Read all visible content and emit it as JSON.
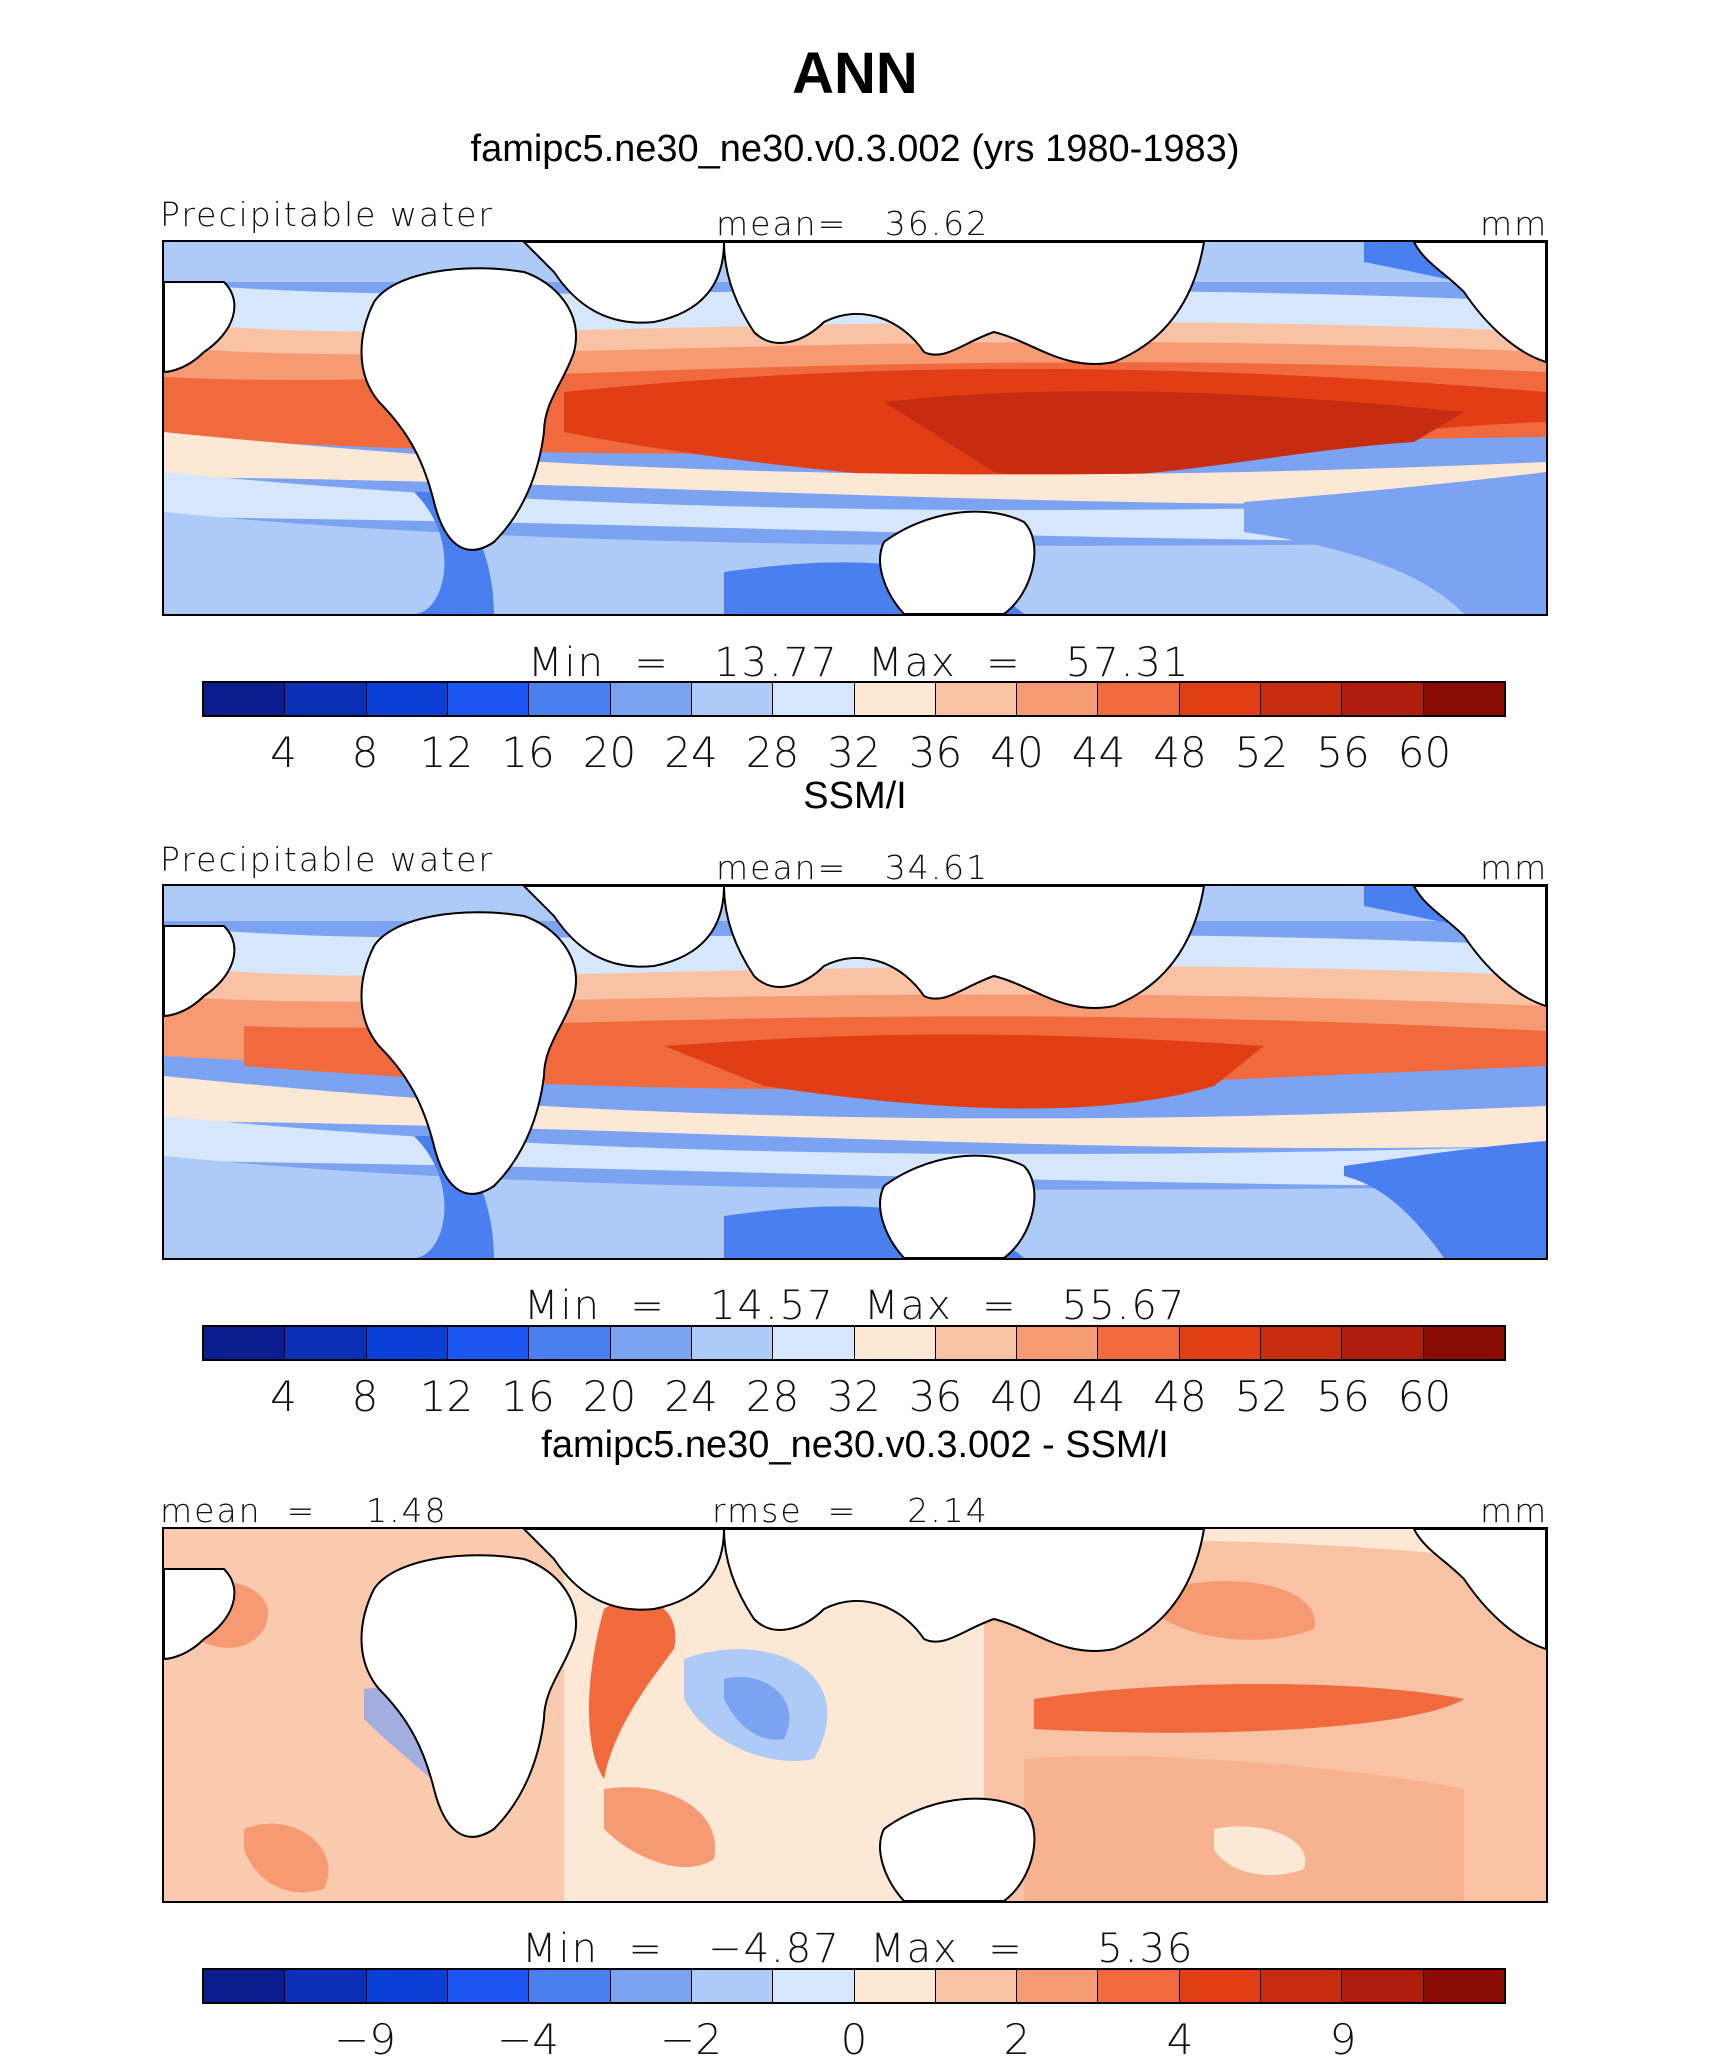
{
  "title": "ANN",
  "colors": {
    "scale": [
      "#0a1d8c",
      "#0b2fb5",
      "#0a3fd8",
      "#1d55f2",
      "#4a7ff0",
      "#7ca2f2",
      "#aecaf6",
      "#d6e7fb",
      "#fde8d6",
      "#f9c2a4",
      "#f59a73",
      "#f06a3d",
      "#e23e16",
      "#c52c10",
      "#b01c0c",
      "#8a0a05"
    ],
    "land": "#ffffff"
  },
  "panels": [
    {
      "title": "famipc5.ne30_ne30.v0.3.002 (yrs 1980-1983)",
      "left_label": "Precipitable water",
      "center_label": "mean=   36.62",
      "right_label": "mm",
      "minmax": "Min  =   13.77  Max  =   57.31",
      "ticks": [
        "4",
        "8",
        "12",
        "16",
        "20",
        "24",
        "28",
        "32",
        "36",
        "40",
        "44",
        "48",
        "52",
        "56",
        "60"
      ]
    },
    {
      "title": "SSM/I",
      "left_label": "Precipitable water",
      "center_label": "mean=   34.61",
      "right_label": "mm",
      "minmax": "Min  =   14.57  Max  =   55.67",
      "ticks": [
        "4",
        "8",
        "12",
        "16",
        "20",
        "24",
        "28",
        "32",
        "36",
        "40",
        "44",
        "48",
        "52",
        "56",
        "60"
      ]
    },
    {
      "title": "famipc5.ne30_ne30.v0.3.002 - SSM/I",
      "left_label": "mean  =    1.48",
      "center_label": "rmse  =    2.14",
      "right_label": "mm",
      "minmax": "Min  =   −4.87  Max  =     5.36",
      "ticks": [
        "−9",
        "−4",
        "−2",
        "0",
        "2",
        "4",
        "9"
      ]
    }
  ]
}
